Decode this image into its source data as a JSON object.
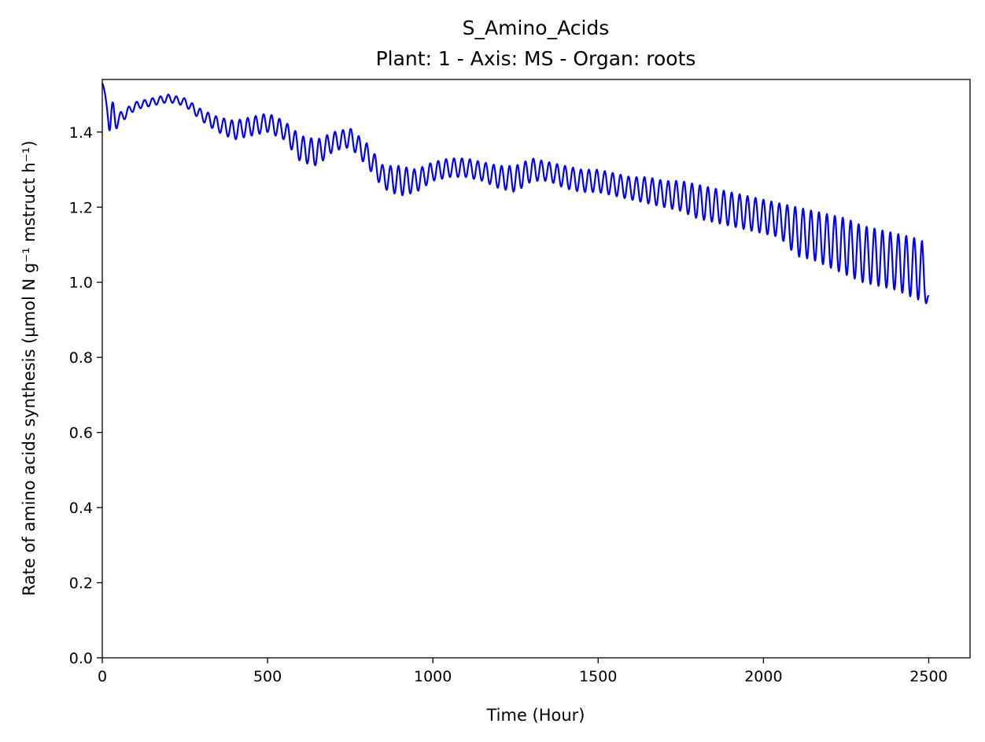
{
  "chart_data": {
    "type": "line",
    "title": "S_Amino_Acids",
    "subtitle": "Plant: 1 - Axis: MS - Organ: roots",
    "xlabel": "Time (Hour)",
    "ylabel": "Rate of amino acids synthesis (µmol N g⁻¹ mstruct h⁻¹)",
    "xlim": [
      0,
      2625
    ],
    "ylim": [
      0,
      1.54
    ],
    "x_ticks": [
      0,
      500,
      1000,
      1500,
      2000,
      2500
    ],
    "x_tick_labels": [
      "0",
      "500",
      "1000",
      "1500",
      "2000",
      "2500"
    ],
    "y_ticks": [
      0,
      0.2,
      0.4,
      0.6,
      0.8,
      1.0,
      1.2,
      1.4
    ],
    "y_tick_labels": [
      "0.0",
      "0.2",
      "0.4",
      "0.6",
      "0.8",
      "1.0",
      "1.2",
      "1.4"
    ],
    "grid": false,
    "series": [
      {
        "color": "#0000ff",
        "period_hours": 24,
        "upper_envelope": [
          [
            0,
            1.53
          ],
          [
            50,
            1.45
          ],
          [
            100,
            1.48
          ],
          [
            150,
            1.49
          ],
          [
            200,
            1.5
          ],
          [
            250,
            1.49
          ],
          [
            300,
            1.46
          ],
          [
            350,
            1.44
          ],
          [
            400,
            1.43
          ],
          [
            450,
            1.44
          ],
          [
            500,
            1.45
          ],
          [
            550,
            1.43
          ],
          [
            600,
            1.39
          ],
          [
            650,
            1.38
          ],
          [
            700,
            1.4
          ],
          [
            750,
            1.41
          ],
          [
            800,
            1.37
          ],
          [
            850,
            1.31
          ],
          [
            900,
            1.31
          ],
          [
            950,
            1.3
          ],
          [
            1000,
            1.32
          ],
          [
            1050,
            1.33
          ],
          [
            1100,
            1.33
          ],
          [
            1150,
            1.32
          ],
          [
            1200,
            1.31
          ],
          [
            1250,
            1.31
          ],
          [
            1300,
            1.33
          ],
          [
            1350,
            1.32
          ],
          [
            1400,
            1.31
          ],
          [
            1450,
            1.3
          ],
          [
            1500,
            1.3
          ],
          [
            1550,
            1.29
          ],
          [
            1600,
            1.28
          ],
          [
            1650,
            1.28
          ],
          [
            1700,
            1.27
          ],
          [
            1750,
            1.27
          ],
          [
            1800,
            1.26
          ],
          [
            1850,
            1.25
          ],
          [
            1900,
            1.24
          ],
          [
            1950,
            1.23
          ],
          [
            2000,
            1.22
          ],
          [
            2050,
            1.21
          ],
          [
            2100,
            1.2
          ],
          [
            2150,
            1.19
          ],
          [
            2200,
            1.18
          ],
          [
            2250,
            1.17
          ],
          [
            2300,
            1.15
          ],
          [
            2350,
            1.14
          ],
          [
            2400,
            1.13
          ],
          [
            2450,
            1.12
          ],
          [
            2480,
            1.11
          ],
          [
            2500,
            0.97
          ]
        ],
        "lower_envelope": [
          [
            0,
            1.53
          ],
          [
            25,
            1.38
          ],
          [
            50,
            1.42
          ],
          [
            100,
            1.46
          ],
          [
            150,
            1.47
          ],
          [
            200,
            1.48
          ],
          [
            250,
            1.47
          ],
          [
            300,
            1.43
          ],
          [
            350,
            1.4
          ],
          [
            400,
            1.38
          ],
          [
            450,
            1.39
          ],
          [
            500,
            1.4
          ],
          [
            550,
            1.38
          ],
          [
            600,
            1.32
          ],
          [
            650,
            1.31
          ],
          [
            700,
            1.35
          ],
          [
            750,
            1.36
          ],
          [
            800,
            1.31
          ],
          [
            850,
            1.25
          ],
          [
            900,
            1.23
          ],
          [
            950,
            1.24
          ],
          [
            1000,
            1.27
          ],
          [
            1050,
            1.28
          ],
          [
            1100,
            1.28
          ],
          [
            1150,
            1.27
          ],
          [
            1200,
            1.25
          ],
          [
            1250,
            1.24
          ],
          [
            1300,
            1.27
          ],
          [
            1350,
            1.27
          ],
          [
            1400,
            1.25
          ],
          [
            1450,
            1.24
          ],
          [
            1500,
            1.24
          ],
          [
            1550,
            1.23
          ],
          [
            1600,
            1.22
          ],
          [
            1650,
            1.21
          ],
          [
            1700,
            1.2
          ],
          [
            1750,
            1.19
          ],
          [
            1800,
            1.17
          ],
          [
            1850,
            1.16
          ],
          [
            1900,
            1.15
          ],
          [
            1950,
            1.14
          ],
          [
            2000,
            1.13
          ],
          [
            2050,
            1.12
          ],
          [
            2100,
            1.07
          ],
          [
            2150,
            1.06
          ],
          [
            2200,
            1.04
          ],
          [
            2250,
            1.02
          ],
          [
            2300,
            1.0
          ],
          [
            2350,
            0.99
          ],
          [
            2400,
            0.98
          ],
          [
            2450,
            0.96
          ],
          [
            2480,
            0.95
          ],
          [
            2500,
            0.94
          ]
        ]
      }
    ]
  }
}
